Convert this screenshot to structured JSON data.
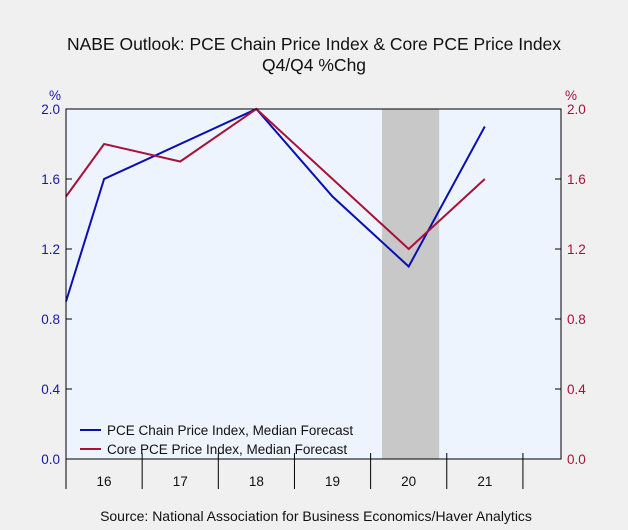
{
  "chart_data": {
    "type": "line",
    "title": "NABE Outlook: PCE Chain Price Index & Core PCE Price Index",
    "subtitle": "Q4/Q4 %Chg",
    "ylabel_left": "%",
    "ylabel_right": "%",
    "categories": [
      "16",
      "17",
      "18",
      "19",
      "20",
      "21"
    ],
    "x": [
      2015.5,
      2016,
      2018,
      2019,
      2020,
      2021
    ],
    "ylim": [
      0,
      2.0
    ],
    "yticks": [
      "0.0",
      "0.4",
      "0.8",
      "1.2",
      "1.6",
      "2.0"
    ],
    "shaded_region": {
      "from": 2019.65,
      "to": 2020.4,
      "color": "#c8c8c8"
    },
    "series": [
      {
        "name": "PCE Chain Price Index, Median Forecast",
        "color": "#0a10b0",
        "points": [
          [
            2015.5,
            0.9
          ],
          [
            2016,
            1.6
          ],
          [
            2018,
            2.0
          ],
          [
            2019,
            1.5
          ],
          [
            2020,
            1.1
          ],
          [
            2021,
            1.9
          ]
        ]
      },
      {
        "name": "Core PCE Price Index, Median Forecast",
        "color": "#a8123a",
        "points": [
          [
            2015.5,
            1.5
          ],
          [
            2016,
            1.8
          ],
          [
            2017,
            1.7
          ],
          [
            2018,
            2.0
          ],
          [
            2020,
            1.2
          ],
          [
            2021,
            1.6
          ]
        ]
      }
    ],
    "legend_position": "bottom-left",
    "grid": false,
    "source": "Source:  National Association for Business Economics/Haver Analytics",
    "colors": {
      "plot_bg": "#eef4fe",
      "page_bg": "#f0f0f0",
      "left_axis": "#1818a0",
      "right_axis": "#a8123a"
    }
  }
}
